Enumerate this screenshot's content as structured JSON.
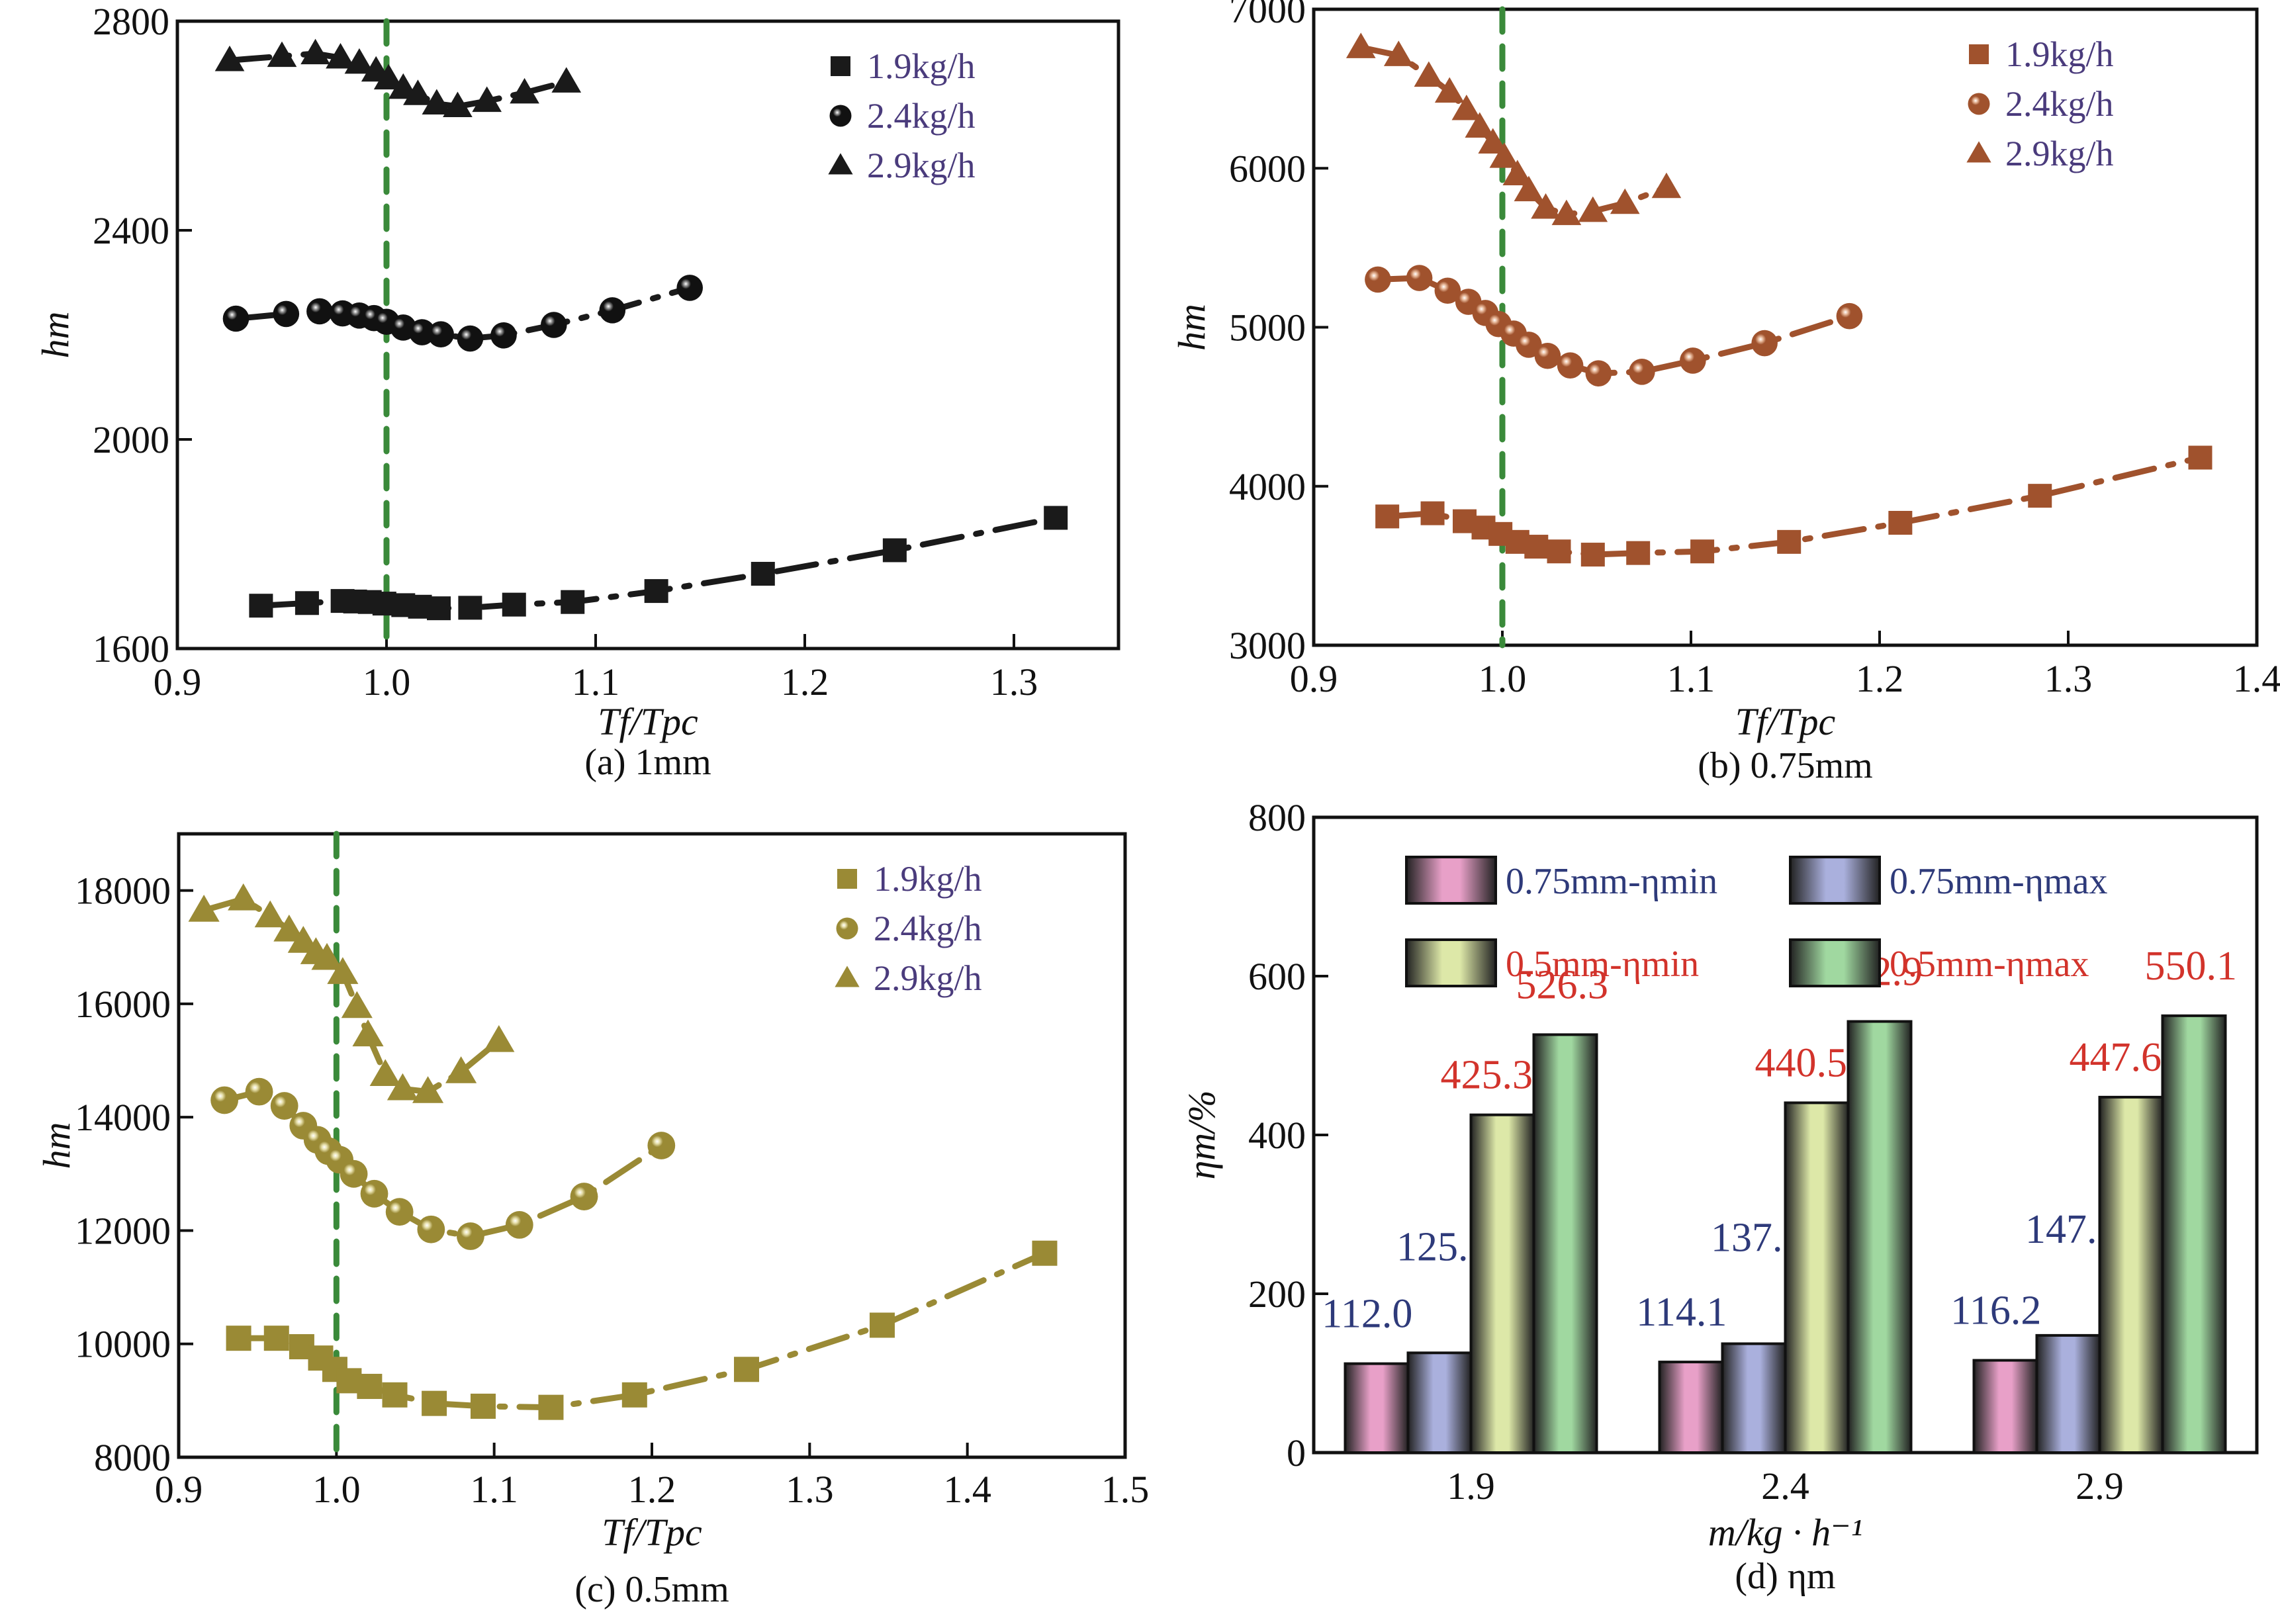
{
  "figure": {
    "captions": [
      "(a) 1mm",
      "(b) 0.75mm",
      "(c) 0.5mm",
      "(d) ηm"
    ]
  },
  "chart_data": [
    {
      "id": "a",
      "type": "line",
      "title": "(a) 1mm",
      "xlabel": "Tf/Tpc",
      "ylabel": "hm",
      "xlim": [
        0.9,
        1.35
      ],
      "ylim": [
        1600,
        2800
      ],
      "xticks": [
        0.9,
        1.0,
        1.1,
        1.2,
        1.3
      ],
      "yticks": [
        1600,
        2000,
        2400,
        2800
      ],
      "color": "#1a1a1a",
      "reference_line_x": 1.0,
      "legend_position": "top-right",
      "series": [
        {
          "name": "1.9kg/h",
          "marker": "square",
          "x": [
            0.94,
            0.962,
            0.979,
            0.985,
            0.992,
            0.999,
            1.008,
            1.016,
            1.025,
            1.04,
            1.061,
            1.089,
            1.129,
            1.18,
            1.243,
            1.32
          ],
          "y": [
            1682,
            1687,
            1691,
            1690,
            1689,
            1686,
            1683,
            1680,
            1677,
            1678,
            1684,
            1689,
            1710,
            1743,
            1788,
            1850
          ]
        },
        {
          "name": "2.4kg/h",
          "marker": "sphere",
          "x": [
            0.928,
            0.952,
            0.968,
            0.979,
            0.987,
            0.994,
            1.0,
            1.008,
            1.017,
            1.026,
            1.04,
            1.056,
            1.08,
            1.108,
            1.145
          ],
          "y": [
            2231,
            2240,
            2245,
            2241,
            2237,
            2232,
            2225,
            2214,
            2205,
            2201,
            2193,
            2199,
            2219,
            2247,
            2290
          ]
        },
        {
          "name": "2.9kg/h",
          "marker": "triangle",
          "x": [
            0.925,
            0.95,
            0.966,
            0.978,
            0.987,
            0.995,
            1.001,
            1.008,
            1.015,
            1.024,
            1.034,
            1.048,
            1.066,
            1.086
          ],
          "y": [
            2725,
            2733,
            2738,
            2730,
            2720,
            2705,
            2690,
            2672,
            2660,
            2642,
            2637,
            2647,
            2663,
            2684
          ]
        }
      ]
    },
    {
      "id": "b",
      "type": "line",
      "title": "(b) 0.75mm",
      "xlabel": "Tf/Tpc",
      "ylabel": "hm",
      "xlim": [
        0.9,
        1.4
      ],
      "ylim": [
        3000,
        7000
      ],
      "xticks": [
        0.9,
        1.0,
        1.1,
        1.2,
        1.3,
        1.4
      ],
      "yticks": [
        3000,
        4000,
        5000,
        6000,
        7000
      ],
      "color": "#a0522d",
      "reference_line_x": 1.0,
      "legend_position": "top-right",
      "series": [
        {
          "name": "1.9kg/h",
          "marker": "square",
          "x": [
            0.939,
            0.963,
            0.98,
            0.99,
            0.999,
            1.008,
            1.018,
            1.03,
            1.048,
            1.072,
            1.106,
            1.152,
            1.211,
            1.285,
            1.37
          ],
          "y": [
            3810,
            3830,
            3780,
            3740,
            3700,
            3650,
            3620,
            3590,
            3570,
            3580,
            3590,
            3650,
            3770,
            3940,
            4180
          ]
        },
        {
          "name": "2.4kg/h",
          "marker": "sphere",
          "x": [
            0.934,
            0.956,
            0.971,
            0.982,
            0.991,
            0.998,
            1.006,
            1.014,
            1.024,
            1.036,
            1.051,
            1.074,
            1.101,
            1.139,
            1.184
          ],
          "y": [
            5300,
            5310,
            5230,
            5160,
            5090,
            5020,
            4960,
            4890,
            4820,
            4760,
            4710,
            4720,
            4790,
            4900,
            5070
          ]
        },
        {
          "name": "2.9kg/h",
          "marker": "triangle",
          "x": [
            0.925,
            0.945,
            0.961,
            0.972,
            0.981,
            0.988,
            0.995,
            1.001,
            1.008,
            1.014,
            1.023,
            1.034,
            1.048,
            1.065,
            1.087
          ],
          "y": [
            6760,
            6710,
            6580,
            6480,
            6370,
            6260,
            6160,
            6070,
            5960,
            5860,
            5750,
            5710,
            5730,
            5780,
            5880
          ]
        }
      ]
    },
    {
      "id": "c",
      "type": "line",
      "title": "(c) 0.5mm",
      "xlabel": "Tf/Tpc",
      "ylabel": "hm",
      "xlim": [
        0.9,
        1.5
      ],
      "ylim": [
        8000,
        19000
      ],
      "xticks": [
        0.9,
        1.0,
        1.1,
        1.2,
        1.3,
        1.4,
        1.5
      ],
      "yticks": [
        8000,
        10000,
        12000,
        14000,
        16000,
        18000
      ],
      "color": "#9a8a35",
      "reference_line_x": 1.0,
      "legend_position": "top-right",
      "series": [
        {
          "name": "1.9kg/h",
          "marker": "square",
          "x": [
            0.938,
            0.962,
            0.978,
            0.99,
            0.999,
            1.008,
            1.021,
            1.037,
            1.062,
            1.093,
            1.136,
            1.189,
            1.26,
            1.346,
            1.449
          ],
          "y": [
            10100,
            10100,
            9950,
            9750,
            9550,
            9350,
            9250,
            9100,
            8950,
            8900,
            8880,
            9100,
            9550,
            10330,
            11600
          ]
        },
        {
          "name": "2.4kg/h",
          "marker": "sphere",
          "x": [
            0.929,
            0.951,
            0.967,
            0.979,
            0.988,
            0.995,
            1.002,
            1.011,
            1.024,
            1.04,
            1.06,
            1.085,
            1.116,
            1.157,
            1.206
          ],
          "y": [
            14300,
            14450,
            14200,
            13850,
            13600,
            13400,
            13250,
            13000,
            12650,
            12330,
            12020,
            11900,
            12100,
            12600,
            13500
          ]
        },
        {
          "name": "2.9kg/h",
          "marker": "triangle",
          "x": [
            0.916,
            0.941,
            0.958,
            0.97,
            0.979,
            0.987,
            0.994,
            1.004,
            1.013,
            1.02,
            1.031,
            1.042,
            1.058,
            1.079,
            1.103
          ],
          "y": [
            17650,
            17850,
            17550,
            17300,
            17100,
            16900,
            16800,
            16550,
            15950,
            15450,
            14750,
            14500,
            14450,
            14800,
            15350
          ]
        }
      ]
    },
    {
      "id": "d",
      "type": "bar",
      "title": "(d) ηm",
      "xlabel": "m/kg · h⁻¹",
      "ylabel": "ηm/%",
      "ylim": [
        0,
        800
      ],
      "yticks": [
        0,
        200,
        400,
        600,
        800
      ],
      "categories": [
        "1.9",
        "2.4",
        "2.9"
      ],
      "legend_position": "top",
      "series": [
        {
          "name": "0.75mm-ηmin",
          "label_color": "#2e3a7a",
          "color": "#e8a0c8",
          "values": [
            112.0,
            114.1,
            116.2
          ]
        },
        {
          "name": "0.75mm-ηmax",
          "label_color": "#2e3a7a",
          "color": "#aab0dd",
          "values": [
            125.6,
            137.1,
            147.6
          ]
        },
        {
          "name": "0.5mm-ηmin",
          "label_color": "#d2332b",
          "color": "#dde8a8",
          "values": [
            425.3,
            440.5,
            447.6
          ]
        },
        {
          "name": "0.5mm-ηmax",
          "label_color": "#d2332b",
          "color": "#a0d8a0",
          "values": [
            526.3,
            542.9,
            550.1
          ]
        }
      ],
      "data_labels": [
        [
          "112.0",
          "114.1",
          "116.2"
        ],
        [
          "125.6",
          "137.1",
          "147.6"
        ],
        [
          "425.3",
          "440.5",
          "447.6"
        ],
        [
          "526.3",
          "542.9",
          "550.1"
        ]
      ]
    }
  ]
}
